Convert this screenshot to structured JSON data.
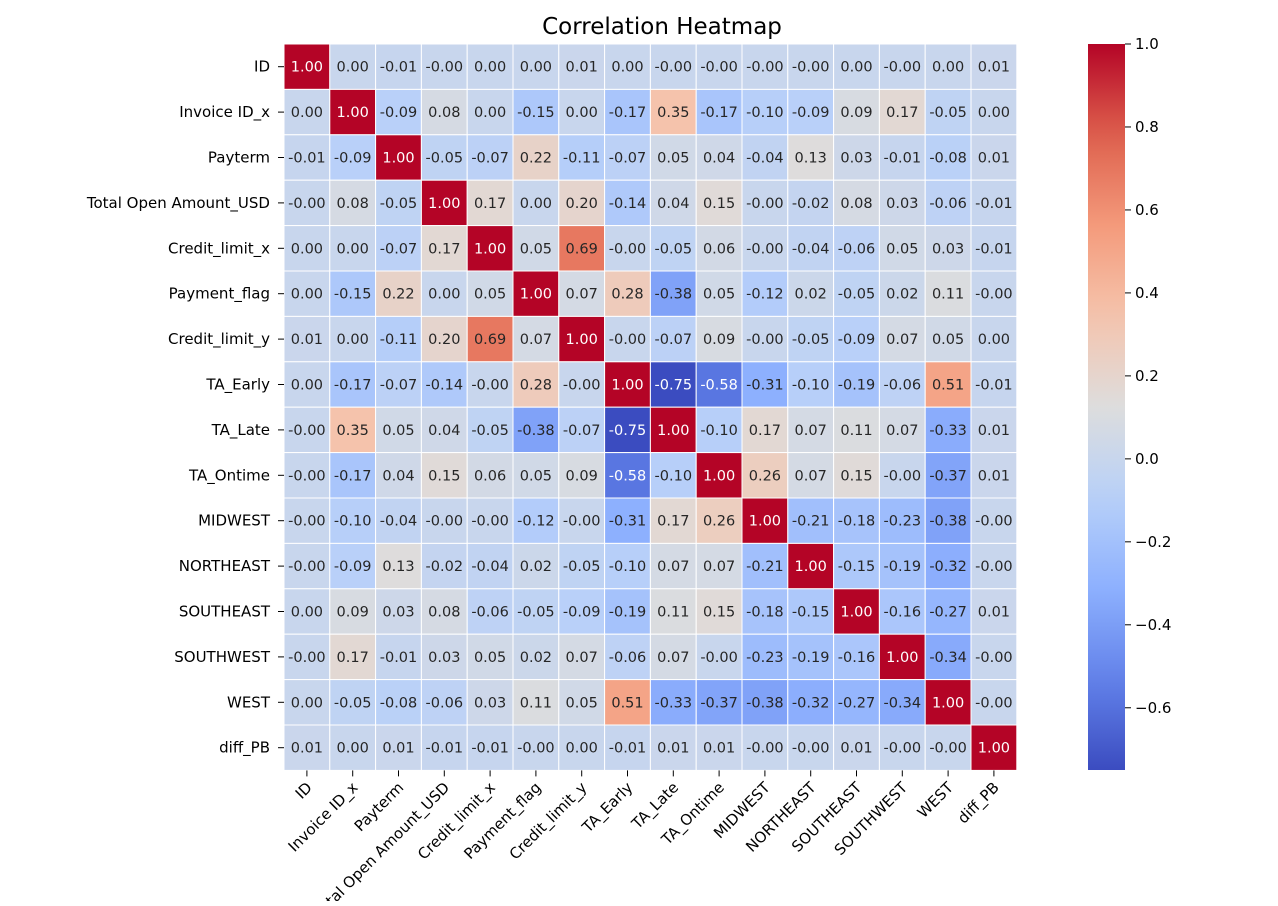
{
  "chart_data": {
    "type": "heatmap",
    "title": "Correlation Heatmap",
    "colormap": "coolwarm",
    "vmin": -0.75,
    "vmax": 1.0,
    "cell_border_color": "#ffffff",
    "labels": [
      "ID",
      "Invoice ID_x",
      "Payterm",
      "Total Open Amount_USD",
      "Credit_limit_x",
      "Payment_flag",
      "Credit_limit_y",
      "TA_Early",
      "TA_Late",
      "TA_Ontime",
      "MIDWEST",
      "NORTHEAST",
      "SOUTHEAST",
      "SOUTHWEST",
      "WEST",
      "diff_PB"
    ],
    "values": [
      [
        1.0,
        0.0,
        -0.01,
        -0.0,
        0.0,
        0.0,
        0.01,
        0.0,
        -0.0,
        -0.0,
        -0.0,
        -0.0,
        0.0,
        -0.0,
        0.0,
        0.01
      ],
      [
        0.0,
        1.0,
        -0.09,
        0.08,
        0.0,
        -0.15,
        0.0,
        -0.17,
        0.35,
        -0.17,
        -0.1,
        -0.09,
        0.09,
        0.17,
        -0.05,
        0.0
      ],
      [
        -0.01,
        -0.09,
        1.0,
        -0.05,
        -0.07,
        0.22,
        -0.11,
        -0.07,
        0.05,
        0.04,
        -0.04,
        0.13,
        0.03,
        -0.01,
        -0.08,
        0.01
      ],
      [
        -0.0,
        0.08,
        -0.05,
        1.0,
        0.17,
        0.0,
        0.2,
        -0.14,
        0.04,
        0.15,
        -0.0,
        -0.02,
        0.08,
        0.03,
        -0.06,
        -0.01
      ],
      [
        0.0,
        0.0,
        -0.07,
        0.17,
        1.0,
        0.05,
        0.69,
        -0.0,
        -0.05,
        0.06,
        -0.0,
        -0.04,
        -0.06,
        0.05,
        0.03,
        -0.01
      ],
      [
        0.0,
        -0.15,
        0.22,
        0.0,
        0.05,
        1.0,
        0.07,
        0.28,
        -0.38,
        0.05,
        -0.12,
        0.02,
        -0.05,
        0.02,
        0.11,
        -0.0
      ],
      [
        0.01,
        0.0,
        -0.11,
        0.2,
        0.69,
        0.07,
        1.0,
        -0.0,
        -0.07,
        0.09,
        -0.0,
        -0.05,
        -0.09,
        0.07,
        0.05,
        0.0
      ],
      [
        0.0,
        -0.17,
        -0.07,
        -0.14,
        -0.0,
        0.28,
        -0.0,
        1.0,
        -0.75,
        -0.58,
        -0.31,
        -0.1,
        -0.19,
        -0.06,
        0.51,
        -0.01
      ],
      [
        -0.0,
        0.35,
        0.05,
        0.04,
        -0.05,
        -0.38,
        -0.07,
        -0.75,
        1.0,
        -0.1,
        0.17,
        0.07,
        0.11,
        0.07,
        -0.33,
        0.01
      ],
      [
        -0.0,
        -0.17,
        0.04,
        0.15,
        0.06,
        0.05,
        0.09,
        -0.58,
        -0.1,
        1.0,
        0.26,
        0.07,
        0.15,
        -0.0,
        -0.37,
        0.01
      ],
      [
        -0.0,
        -0.1,
        -0.04,
        -0.0,
        -0.0,
        -0.12,
        -0.0,
        -0.31,
        0.17,
        0.26,
        1.0,
        -0.21,
        -0.18,
        -0.23,
        -0.38,
        -0.0
      ],
      [
        -0.0,
        -0.09,
        0.13,
        -0.02,
        -0.04,
        0.02,
        -0.05,
        -0.1,
        0.07,
        0.07,
        -0.21,
        1.0,
        -0.15,
        -0.19,
        -0.32,
        -0.0
      ],
      [
        0.0,
        0.09,
        0.03,
        0.08,
        -0.06,
        -0.05,
        -0.09,
        -0.19,
        0.11,
        0.15,
        -0.18,
        -0.15,
        1.0,
        -0.16,
        -0.27,
        0.01
      ],
      [
        -0.0,
        0.17,
        -0.01,
        0.03,
        0.05,
        0.02,
        0.07,
        -0.06,
        0.07,
        -0.0,
        -0.23,
        -0.19,
        -0.16,
        1.0,
        -0.34,
        -0.0
      ],
      [
        0.0,
        -0.05,
        -0.08,
        -0.06,
        0.03,
        0.11,
        0.05,
        0.51,
        -0.33,
        -0.37,
        -0.38,
        -0.32,
        -0.27,
        -0.34,
        1.0,
        -0.0
      ],
      [
        0.01,
        0.0,
        0.01,
        -0.01,
        -0.01,
        -0.0,
        0.0,
        -0.01,
        0.01,
        0.01,
        -0.0,
        -0.0,
        0.01,
        -0.0,
        -0.0,
        1.0
      ]
    ],
    "colorbar_ticks": [
      1.0,
      0.8,
      0.6,
      0.4,
      0.2,
      0.0,
      -0.2,
      -0.4,
      -0.6
    ],
    "colorbar_tick_labels": [
      "1.0",
      "0.8",
      "0.6",
      "0.4",
      "0.2",
      "0.0",
      "−0.2",
      "−0.4",
      "−0.6"
    ]
  }
}
